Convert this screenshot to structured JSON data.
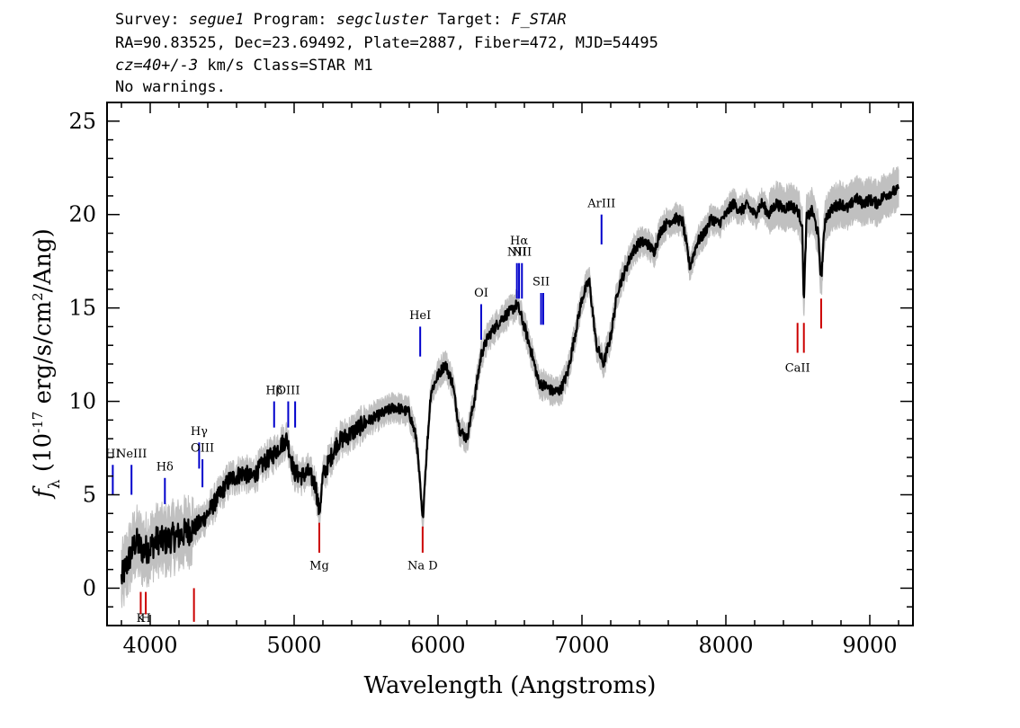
{
  "header": {
    "survey_label": "Survey:",
    "survey": "segue1",
    "program_label": "Program:",
    "program": "segcluster",
    "target_label": "Target:",
    "target": "F_STAR",
    "line2": "RA=90.83525, Dec=23.69492, Plate=2887, Fiber=472, MJD=54495",
    "cz_value": "cz=40+/-3",
    "cz_rest": "km/s Class=STAR M1",
    "line4": "No warnings."
  },
  "chart_data": {
    "type": "line",
    "xlabel": "Wavelength (Angstroms)",
    "ylabel": "f_λ (10^-17 erg/s/cm^2/Ang)",
    "xlim": [
      3700,
      9300
    ],
    "ylim": [
      -2,
      26
    ],
    "xticks": [
      4000,
      5000,
      6000,
      7000,
      8000,
      9000
    ],
    "yticks": [
      0,
      5,
      10,
      15,
      20,
      25
    ],
    "x_tick_labels": [
      "4000",
      "5000",
      "6000",
      "7000",
      "8000",
      "9000"
    ],
    "y_tick_labels": [
      "0",
      "5",
      "10",
      "15",
      "20",
      "25"
    ],
    "colors": {
      "flux": "#000000",
      "error_band": "#c0c0c0",
      "emission": "#0000cc",
      "absorption": "#cc0000"
    },
    "series": [
      {
        "style": "spectrum",
        "x": [
          3800,
          3850,
          3900,
          3950,
          4000,
          4050,
          4100,
          4150,
          4200,
          4250,
          4300,
          4350,
          4400,
          4450,
          4500,
          4550,
          4600,
          4650,
          4700,
          4750,
          4800,
          4850,
          4900,
          4950,
          5000,
          5050,
          5100,
          5150,
          5175,
          5200,
          5300,
          5400,
          5500,
          5600,
          5700,
          5800,
          5850,
          5880,
          5893,
          5910,
          5950,
          6000,
          6050,
          6100,
          6150,
          6200,
          6250,
          6300,
          6350,
          6400,
          6450,
          6500,
          6550,
          6600,
          6650,
          6700,
          6750,
          6800,
          6850,
          6900,
          6950,
          7000,
          7050,
          7100,
          7150,
          7200,
          7250,
          7300,
          7350,
          7400,
          7450,
          7500,
          7550,
          7600,
          7650,
          7700,
          7750,
          7800,
          7850,
          7900,
          7950,
          8000,
          8050,
          8100,
          8150,
          8200,
          8250,
          8300,
          8350,
          8400,
          8450,
          8500,
          8530,
          8542,
          8560,
          8600,
          8640,
          8662,
          8690,
          8750,
          8800,
          8850,
          8900,
          8950,
          9000,
          9050,
          9100,
          9150,
          9200
        ],
        "y": [
          0.5,
          1.5,
          2.5,
          2.0,
          2.2,
          2.6,
          2.5,
          2.7,
          2.8,
          3.0,
          3.2,
          3.5,
          4.0,
          4.6,
          5.2,
          5.8,
          6.0,
          6.2,
          5.9,
          6.3,
          6.8,
          7.1,
          7.6,
          8.0,
          6.2,
          6.0,
          6.2,
          5.5,
          4.0,
          6.0,
          7.8,
          8.3,
          8.9,
          9.3,
          9.7,
          9.4,
          8.0,
          5.0,
          3.5,
          6.0,
          10.5,
          11.4,
          12.0,
          11.0,
          8.5,
          8.0,
          10.0,
          12.5,
          13.5,
          14.0,
          14.5,
          14.8,
          15.2,
          14.0,
          12.6,
          11.0,
          10.8,
          10.5,
          10.6,
          11.5,
          13.5,
          15.5,
          16.5,
          13.0,
          12.0,
          13.5,
          16.0,
          17.0,
          18.0,
          18.5,
          18.5,
          18.0,
          19.2,
          19.6,
          19.8,
          19.6,
          17.2,
          18.5,
          19.0,
          19.8,
          19.5,
          20.0,
          20.6,
          20.2,
          20.5,
          20.0,
          20.6,
          20.0,
          20.6,
          20.3,
          20.5,
          20.2,
          19.5,
          15.2,
          19.8,
          20.2,
          19.0,
          16.5,
          19.8,
          20.4,
          20.6,
          20.3,
          20.9,
          20.6,
          20.8,
          20.6,
          21.0,
          21.2,
          21.3
        ]
      }
    ],
    "line_markers": [
      {
        "label": "HI",
        "wavelength": 3740,
        "kind": "emission",
        "top": 6.6,
        "bottom": 5.0,
        "label_y": 7.0
      },
      {
        "label": "NeIII",
        "wavelength": 3870,
        "kind": "emission",
        "top": 6.6,
        "bottom": 5.0,
        "label_y": 7.0
      },
      {
        "label": "Hδ",
        "wavelength": 4102,
        "kind": "emission",
        "top": 5.9,
        "bottom": 4.5,
        "label_y": 6.3
      },
      {
        "label": "Hγ",
        "wavelength": 4340,
        "kind": "emission",
        "top": 7.8,
        "bottom": 6.4,
        "label_y": 8.2
      },
      {
        "label": "OIII",
        "wavelength": 4363,
        "kind": "emission",
        "top": 6.9,
        "bottom": 5.4,
        "label_y": 7.3
      },
      {
        "label": "Hβ",
        "wavelength": 4861,
        "kind": "emission",
        "top": 10.0,
        "bottom": 8.6,
        "label_y": 10.4
      },
      {
        "label": "OIII",
        "wavelength": 4959,
        "kind": "emission",
        "top": 10.0,
        "bottom": 8.6,
        "label_y": 10.4
      },
      {
        "label": "",
        "wavelength": 5007,
        "kind": "emission",
        "top": 10.0,
        "bottom": 8.6,
        "label_y": 10.4
      },
      {
        "label": "HeI",
        "wavelength": 5876,
        "kind": "emission",
        "top": 14.0,
        "bottom": 12.4,
        "label_y": 14.4
      },
      {
        "label": "OI",
        "wavelength": 6300,
        "kind": "emission",
        "top": 15.2,
        "bottom": 13.3,
        "label_y": 15.6
      },
      {
        "label": "NII",
        "wavelength": 6548,
        "kind": "emission",
        "top": 17.4,
        "bottom": 15.5,
        "label_y": 17.8
      },
      {
        "label": "Hα",
        "wavelength": 6563,
        "kind": "emission",
        "top": 17.4,
        "bottom": 15.5,
        "label_y": 18.4
      },
      {
        "label": "NII",
        "wavelength": 6583,
        "kind": "emission",
        "top": 17.4,
        "bottom": 15.5,
        "label_y": 17.8
      },
      {
        "label": "SII",
        "wavelength": 6716,
        "kind": "emission",
        "top": 15.8,
        "bottom": 14.1,
        "label_y": 16.2
      },
      {
        "label": "",
        "wavelength": 6731,
        "kind": "emission",
        "top": 15.8,
        "bottom": 14.1,
        "label_y": 16.2
      },
      {
        "label": "ArIII",
        "wavelength": 7136,
        "kind": "emission",
        "top": 20.0,
        "bottom": 18.4,
        "label_y": 20.4
      },
      {
        "label": "K",
        "wavelength": 3934,
        "kind": "absorption",
        "top": -0.2,
        "bottom": -1.4,
        "label_y": -1.8
      },
      {
        "label": "H",
        "wavelength": 3969,
        "kind": "absorption",
        "top": -0.2,
        "bottom": -1.4,
        "label_y": -1.8
      },
      {
        "label": "",
        "wavelength": 4304,
        "kind": "absorption",
        "top": 0.0,
        "bottom": -1.8,
        "label_y": -2.5
      },
      {
        "label": "Mg",
        "wavelength": 5175,
        "kind": "absorption",
        "top": 3.5,
        "bottom": 1.9,
        "label_y": 1.0
      },
      {
        "label": "Na D",
        "wavelength": 5893,
        "kind": "absorption",
        "top": 3.3,
        "bottom": 1.9,
        "label_y": 1.0
      },
      {
        "label": "CaII",
        "wavelength": 8498,
        "kind": "absorption",
        "top": 14.2,
        "bottom": 12.6,
        "label_y": 11.6
      },
      {
        "label": "",
        "wavelength": 8542,
        "kind": "absorption",
        "top": 14.2,
        "bottom": 12.6,
        "label_y": 11.6
      },
      {
        "label": "",
        "wavelength": 8662,
        "kind": "absorption",
        "top": 15.5,
        "bottom": 13.9,
        "label_y": 11.6
      }
    ]
  }
}
